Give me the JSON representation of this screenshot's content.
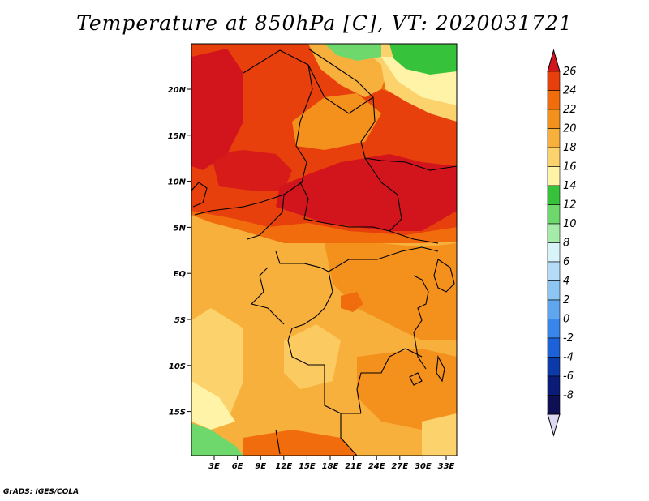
{
  "title": "Temperature at 850hPa [C], VT: 2020031721",
  "footer": "GrADS: IGES/COLA",
  "map": {
    "lat_labels": [
      "20N",
      "15N",
      "10N",
      "5N",
      "EQ",
      "5S",
      "10S",
      "15S"
    ],
    "lon_labels": [
      "3E",
      "6E",
      "9E",
      "12E",
      "15E",
      "18E",
      "21E",
      "24E",
      "27E",
      "30E",
      "33E"
    ]
  },
  "colorbar": {
    "labels": [
      "26",
      "24",
      "22",
      "20",
      "18",
      "16",
      "14",
      "12",
      "10",
      "8",
      "6",
      "4",
      "2",
      "0",
      "-2",
      "-4",
      "-6",
      "-8"
    ],
    "colors": [
      "#d2151c",
      "#e8400d",
      "#f06c0c",
      "#f4911d",
      "#f8b03c",
      "#fbd26c",
      "#fff3a8",
      "#37c23b",
      "#6fd86c",
      "#a5ecaa",
      "#d8f4f8",
      "#b5dcf7",
      "#8dc6f2",
      "#5fa6ee",
      "#3986ea",
      "#1d61d8",
      "#0c3ba9",
      "#0a1c78",
      "#0e0f55",
      "#dcd8f3"
    ]
  }
}
